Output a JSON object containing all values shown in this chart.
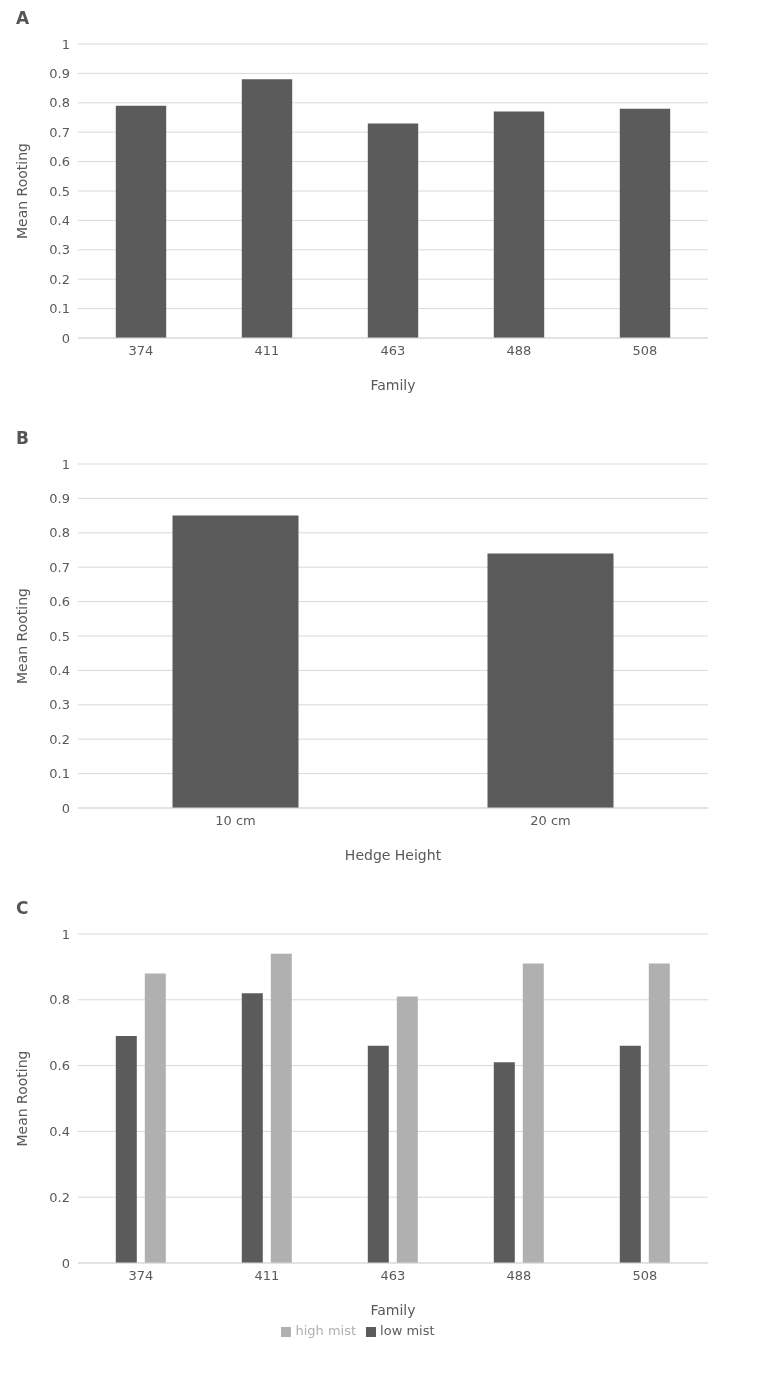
{
  "chart_data": [
    {
      "type": "bar",
      "title": "A",
      "xlabel": "Family",
      "ylabel": "Mean Rooting",
      "categories": [
        "374",
        "411",
        "463",
        "488",
        "508"
      ],
      "values": [
        0.79,
        0.88,
        0.73,
        0.77,
        0.78
      ],
      "color": "#5b5b5b",
      "ylim": [
        0,
        1
      ],
      "yticks": [
        0,
        0.1,
        0.2,
        0.3,
        0.4,
        0.5,
        0.6,
        0.7,
        0.8,
        0.9,
        1
      ],
      "grid": "y",
      "legend": false
    },
    {
      "type": "bar",
      "title": "B",
      "xlabel": "Hedge Height",
      "ylabel": "Mean Rooting",
      "categories": [
        "10 cm",
        "20 cm"
      ],
      "values": [
        0.85,
        0.74
      ],
      "color": "#5b5b5b",
      "ylim": [
        0,
        1
      ],
      "yticks": [
        0,
        0.1,
        0.2,
        0.3,
        0.4,
        0.5,
        0.6,
        0.7,
        0.8,
        0.9,
        1
      ],
      "grid": "y",
      "legend": false
    },
    {
      "type": "bar",
      "title": "C",
      "xlabel": "Family",
      "ylabel": "Mean Rooting",
      "categories": [
        "374",
        "411",
        "463",
        "488",
        "508"
      ],
      "series": [
        {
          "name": "low mist",
          "color": "#5b5b5b",
          "values": [
            0.69,
            0.82,
            0.66,
            0.61,
            0.66
          ]
        },
        {
          "name": "high mist",
          "color": "#b0b0b0",
          "values": [
            0.88,
            0.94,
            0.81,
            0.91,
            0.91
          ]
        }
      ],
      "ylim": [
        0,
        1
      ],
      "yticks": [
        0,
        0.2,
        0.4,
        0.6,
        0.8,
        1
      ],
      "grid": "y",
      "legend": "bottom"
    }
  ]
}
